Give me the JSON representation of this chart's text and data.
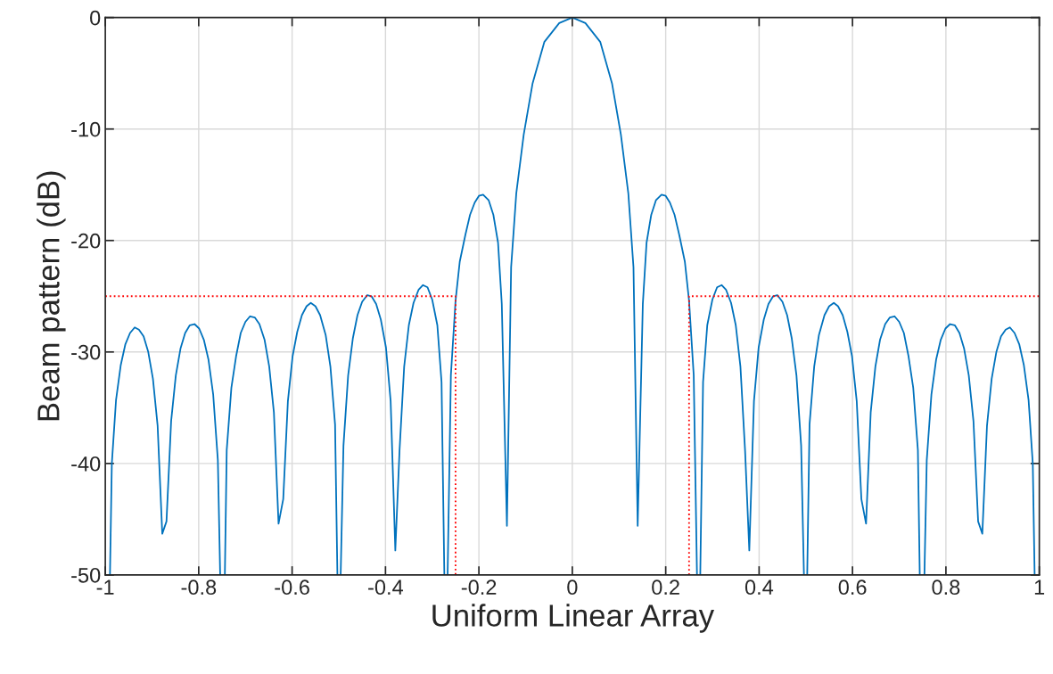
{
  "chart_data": {
    "type": "line",
    "xlabel": "Uniform Linear Array",
    "ylabel": "Beam pattern (dB)",
    "xlim": [
      -1,
      1
    ],
    "xticks": [
      -1,
      -0.8,
      -0.6,
      -0.4,
      -0.2,
      0,
      0.2,
      0.4,
      0.6,
      0.8,
      1
    ],
    "ylim": [
      -50,
      0
    ],
    "yticks": [
      -50,
      -40,
      -30,
      -20,
      -10,
      0
    ],
    "grid": true,
    "series": [
      {
        "color": "#0072bd",
        "line_style": "solid",
        "x": [
          -1.0,
          -0.99,
          -0.986,
          -0.977,
          -0.967,
          -0.957,
          -0.947,
          -0.937,
          -0.928,
          -0.918,
          -0.908,
          -0.898,
          -0.888,
          -0.878,
          -0.869,
          -0.859,
          -0.849,
          -0.839,
          -0.829,
          -0.819,
          -0.809,
          -0.799,
          -0.789,
          -0.779,
          -0.769,
          -0.759,
          -0.754,
          -0.744,
          -0.74,
          -0.73,
          -0.72,
          -0.71,
          -0.7,
          -0.69,
          -0.68,
          -0.67,
          -0.659,
          -0.649,
          -0.639,
          -0.629,
          -0.619,
          -0.609,
          -0.599,
          -0.589,
          -0.579,
          -0.569,
          -0.56,
          -0.55,
          -0.54,
          -0.528,
          -0.518,
          -0.508,
          -0.503,
          -0.496,
          -0.49,
          -0.48,
          -0.47,
          -0.46,
          -0.45,
          -0.439,
          -0.43,
          -0.42,
          -0.41,
          -0.399,
          -0.389,
          -0.379,
          -0.37,
          -0.36,
          -0.35,
          -0.34,
          -0.329,
          -0.32,
          -0.31,
          -0.3,
          -0.289,
          -0.28,
          -0.274,
          -0.267,
          -0.26,
          -0.25,
          -0.241,
          -0.229,
          -0.219,
          -0.209,
          -0.2,
          -0.191,
          -0.179,
          -0.169,
          -0.159,
          -0.151,
          -0.14,
          -0.131,
          -0.12,
          -0.104,
          -0.085,
          -0.06,
          -0.028,
          0,
          0.028,
          0.06,
          0.085,
          0.104,
          0.12,
          0.131,
          0.14,
          0.151,
          0.159,
          0.169,
          0.179,
          0.191,
          0.2,
          0.209,
          0.219,
          0.229,
          0.241,
          0.25,
          0.26,
          0.267,
          0.274,
          0.28,
          0.289,
          0.3,
          0.31,
          0.32,
          0.329,
          0.34,
          0.35,
          0.36,
          0.37,
          0.379,
          0.389,
          0.399,
          0.41,
          0.42,
          0.43,
          0.439,
          0.45,
          0.46,
          0.47,
          0.48,
          0.49,
          0.496,
          0.503,
          0.508,
          0.518,
          0.528,
          0.54,
          0.55,
          0.56,
          0.569,
          0.579,
          0.589,
          0.599,
          0.609,
          0.619,
          0.629,
          0.639,
          0.649,
          0.659,
          0.67,
          0.68,
          0.69,
          0.7,
          0.71,
          0.72,
          0.73,
          0.74,
          0.744,
          0.754,
          0.759,
          0.769,
          0.779,
          0.789,
          0.799,
          0.809,
          0.819,
          0.829,
          0.839,
          0.849,
          0.859,
          0.869,
          0.878,
          0.888,
          0.898,
          0.908,
          0.918,
          0.928,
          0.937,
          0.947,
          0.957,
          0.967,
          0.977,
          0.986,
          0.99
        ],
        "values": [
          -50,
          -50,
          -40,
          -34.3,
          -31.2,
          -29.3,
          -28.3,
          -27.8,
          -28,
          -28.6,
          -30,
          -32.4,
          -36.6,
          -46.3,
          -45.2,
          -36.2,
          -32.1,
          -29.7,
          -28.3,
          -27.6,
          -27.5,
          -27.9,
          -28.9,
          -30.7,
          -33.8,
          -39.7,
          -50,
          -50,
          -38.8,
          -33.2,
          -30.4,
          -28.3,
          -27.3,
          -26.8,
          -26.9,
          -27.5,
          -28.9,
          -31.3,
          -35.4,
          -45.4,
          -43.2,
          -34.4,
          -30.4,
          -28.2,
          -26.7,
          -25.9,
          -25.6,
          -25.9,
          -26.7,
          -28.5,
          -31.3,
          -36.5,
          -50,
          -50,
          -38.4,
          -32.1,
          -28.8,
          -26.7,
          -25.5,
          -24.9,
          -25,
          -25.7,
          -27.1,
          -29.6,
          -34.4,
          -47.8,
          -38.9,
          -31.3,
          -27.6,
          -25.6,
          -24.4,
          -24,
          -24.2,
          -25.3,
          -27.6,
          -32.7,
          -50,
          -50,
          -32.1,
          -25.4,
          -21.9,
          -19.5,
          -17.7,
          -16.6,
          -16,
          -15.9,
          -16.4,
          -17.7,
          -20.2,
          -25.7,
          -45.6,
          -22.4,
          -15.8,
          -10.5,
          -5.9,
          -2.2,
          -0.5,
          0,
          -0.5,
          -2.2,
          -5.9,
          -10.5,
          -15.8,
          -22.4,
          -45.6,
          -25.7,
          -20.2,
          -17.7,
          -16.4,
          -15.9,
          -16,
          -16.6,
          -17.7,
          -19.5,
          -21.9,
          -25.4,
          -32.1,
          -50,
          -50,
          -32.7,
          -27.6,
          -25.3,
          -24.2,
          -24,
          -24.4,
          -25.6,
          -27.6,
          -31.3,
          -38.9,
          -47.8,
          -34.4,
          -29.6,
          -27.1,
          -25.7,
          -25,
          -24.9,
          -25.5,
          -26.7,
          -28.8,
          -32.1,
          -38.4,
          -50,
          -50,
          -36.5,
          -31.3,
          -28.5,
          -26.7,
          -25.9,
          -25.6,
          -25.9,
          -26.7,
          -28.2,
          -30.4,
          -34.4,
          -43.2,
          -45.4,
          -35.4,
          -31.3,
          -28.9,
          -27.5,
          -26.9,
          -26.8,
          -27.3,
          -28.3,
          -30.4,
          -33.2,
          -38.8,
          -50,
          -50,
          -39.7,
          -33.8,
          -30.7,
          -28.9,
          -27.9,
          -27.5,
          -27.6,
          -28.3,
          -29.7,
          -32.1,
          -36.2,
          -45.2,
          -46.3,
          -36.6,
          -32.4,
          -30,
          -28.6,
          -28,
          -27.8,
          -28.3,
          -29.3,
          -31.2,
          -34.3,
          -40,
          -50
        ]
      },
      {
        "color": "#ff0000",
        "line_style": "dotted",
        "x": [
          -1,
          -0.25,
          -0.25
        ],
        "values": [
          -25,
          -25,
          -50
        ]
      },
      {
        "color": "#ff0000",
        "line_style": "dotted",
        "x": [
          0.25,
          0.25,
          1
        ],
        "values": [
          -50,
          -25,
          -25
        ]
      }
    ]
  }
}
